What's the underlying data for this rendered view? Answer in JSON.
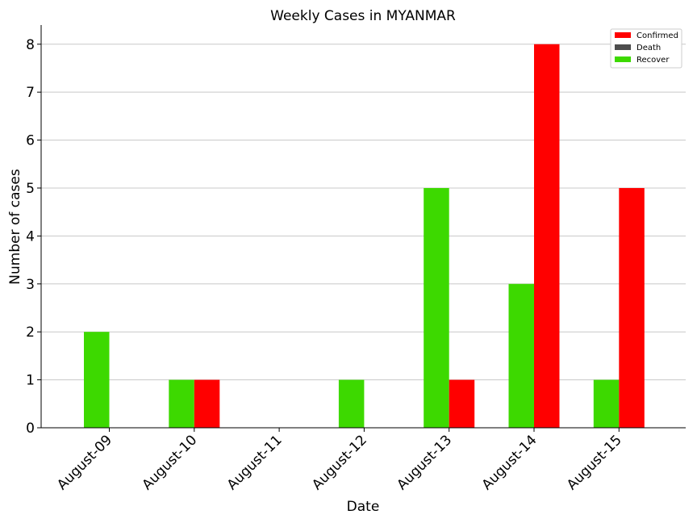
{
  "chart_data": {
    "type": "bar",
    "title": "Weekly Cases in MYANMAR",
    "xlabel": "Date",
    "ylabel": "Number of cases",
    "categories": [
      "August-09",
      "August-10",
      "August-11",
      "August-12",
      "August-13",
      "August-14",
      "August-15"
    ],
    "series": [
      {
        "name": "Recover",
        "color": "#3dd900",
        "values": [
          2,
          1,
          0,
          1,
          5,
          3,
          1
        ]
      },
      {
        "name": "Confirmed",
        "color": "#ff0000",
        "values": [
          0,
          1,
          0,
          0,
          1,
          8,
          5
        ]
      },
      {
        "name": "Death",
        "color": "#4d4d4d",
        "values": [
          0,
          0,
          0,
          0,
          0,
          0,
          0
        ]
      }
    ],
    "legend": {
      "position": "top-right",
      "entries": [
        {
          "name": "Confirmed",
          "color": "#ff0000"
        },
        {
          "name": "Death",
          "color": "#4d4d4d"
        },
        {
          "name": "Recover",
          "color": "#3dd900"
        }
      ]
    },
    "ylim": [
      0,
      8.4
    ],
    "yticks": [
      0,
      1,
      2,
      3,
      4,
      5,
      6,
      7,
      8
    ],
    "grid": "horizontal"
  }
}
